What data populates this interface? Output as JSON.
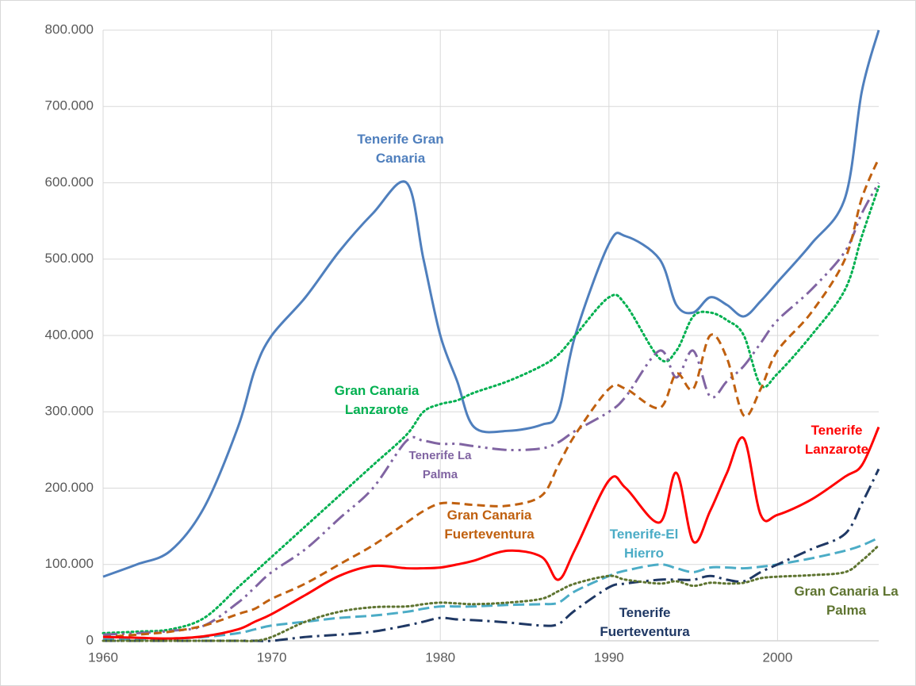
{
  "chart_data": {
    "type": "line",
    "x": [
      1960,
      1962,
      1964,
      1966,
      1968,
      1969,
      1970,
      1972,
      1974,
      1976,
      1978,
      1979,
      1980,
      1981,
      1982,
      1984,
      1986,
      1987,
      1988,
      1990,
      1991,
      1993,
      1994,
      1995,
      1996,
      1997,
      1998,
      1999,
      2000,
      2002,
      2004,
      2005,
      2006
    ],
    "xlim": [
      1960,
      2006
    ],
    "xticks": [
      1960,
      1970,
      1980,
      1990,
      2000
    ],
    "ylim": [
      0,
      800000
    ],
    "yticks": [
      0,
      {
        "value": 100000,
        "label": "100.000"
      },
      {
        "value": 200000,
        "label": "200.000"
      },
      {
        "value": 300000,
        "label": "300.000"
      },
      {
        "value": 400000,
        "label": "400.000"
      },
      {
        "value": 500000,
        "label": "500.000"
      },
      {
        "value": 600000,
        "label": "600.000"
      },
      {
        "value": 700000,
        "label": "700.000"
      },
      {
        "value": 800000,
        "label": "800.000"
      }
    ],
    "grid": true,
    "smooth": true,
    "series": [
      {
        "name": "Tenerife Gran Canaria",
        "color": "#4f7fbd",
        "style": "solid",
        "values": [
          84000,
          100000,
          118000,
          175000,
          280000,
          355000,
          400000,
          450000,
          510000,
          560000,
          600000,
          500000,
          400000,
          340000,
          280000,
          275000,
          283000,
          300000,
          400000,
          520000,
          530000,
          500000,
          440000,
          430000,
          450000,
          440000,
          425000,
          445000,
          470000,
          520000,
          580000,
          720000,
          800000
        ]
      },
      {
        "name": "Gran Canaria Lanzarote",
        "color": "#00b050",
        "style": "dotted",
        "values": [
          10000,
          12000,
          15000,
          30000,
          70000,
          90000,
          110000,
          150000,
          190000,
          230000,
          270000,
          300000,
          310000,
          315000,
          325000,
          340000,
          360000,
          375000,
          400000,
          450000,
          440000,
          370000,
          380000,
          425000,
          430000,
          420000,
          400000,
          335000,
          350000,
          400000,
          460000,
          530000,
          595000
        ]
      },
      {
        "name": "Tenerife La Palma",
        "color": "#8064a2",
        "style": "dash-dot-dot",
        "values": [
          8000,
          10000,
          13000,
          20000,
          50000,
          70000,
          90000,
          120000,
          160000,
          200000,
          262000,
          262000,
          258000,
          258000,
          255000,
          250000,
          252000,
          260000,
          275000,
          300000,
          320000,
          380000,
          345000,
          380000,
          320000,
          340000,
          360000,
          390000,
          420000,
          460000,
          510000,
          560000,
          600000
        ]
      },
      {
        "name": "Gran Canaria Fuerteventura",
        "color": "#c0600f",
        "style": "dashed",
        "values": [
          5000,
          8000,
          12000,
          20000,
          35000,
          42000,
          55000,
          75000,
          100000,
          125000,
          155000,
          170000,
          180000,
          180000,
          178000,
          177000,
          190000,
          230000,
          270000,
          330000,
          330000,
          305000,
          350000,
          330000,
          400000,
          370000,
          295000,
          330000,
          380000,
          430000,
          500000,
          580000,
          632000
        ]
      },
      {
        "name": "Tenerife-El Hierro",
        "color": "#4bacc6",
        "style": "long-dash",
        "values": [
          2000,
          2000,
          3000,
          5000,
          10000,
          15000,
          20000,
          25000,
          30000,
          33000,
          38000,
          42000,
          45000,
          45000,
          45000,
          47000,
          48000,
          50000,
          65000,
          85000,
          92000,
          100000,
          95000,
          90000,
          96000,
          96000,
          95000,
          97000,
          100000,
          108000,
          118000,
          125000,
          135000
        ]
      },
      {
        "name": "Tenerife Fuerteventura",
        "color": "#1f3864",
        "style": "dash-dot",
        "values": [
          0,
          0,
          0,
          0,
          0,
          0,
          0,
          5000,
          8000,
          12000,
          20000,
          25000,
          30000,
          28000,
          27000,
          24000,
          20000,
          22000,
          40000,
          70000,
          75000,
          80000,
          80000,
          80000,
          85000,
          80000,
          78000,
          90000,
          100000,
          120000,
          140000,
          180000,
          225000
        ]
      },
      {
        "name": "Tenerife Lanzarote",
        "color": "#ff0000",
        "style": "solid",
        "values": [
          5000,
          4000,
          3000,
          6000,
          15000,
          25000,
          35000,
          60000,
          85000,
          98000,
          95000,
          95000,
          96000,
          100000,
          105000,
          118000,
          110000,
          80000,
          120000,
          210000,
          200000,
          155000,
          220000,
          130000,
          170000,
          220000,
          265000,
          165000,
          165000,
          185000,
          215000,
          230000,
          280000
        ]
      },
      {
        "name": "Gran Canaria La Palma",
        "color": "#5e7430",
        "style": "dotted",
        "values": [
          0,
          0,
          0,
          0,
          0,
          0,
          5000,
          25000,
          38000,
          44000,
          45000,
          48000,
          50000,
          49000,
          48000,
          50000,
          55000,
          65000,
          75000,
          85000,
          80000,
          75000,
          78000,
          72000,
          76000,
          75000,
          76000,
          82000,
          84000,
          86000,
          90000,
          105000,
          125000
        ]
      }
    ]
  }
}
